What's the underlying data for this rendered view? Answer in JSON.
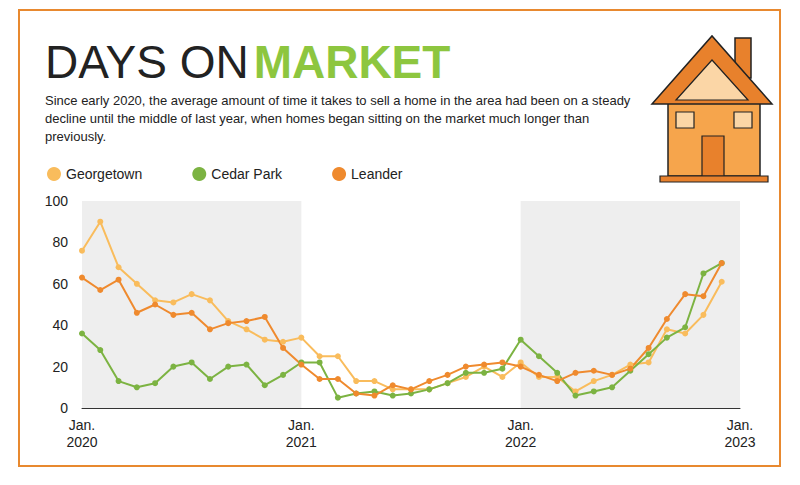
{
  "chart_data": {
    "type": "line",
    "title": "DAYS ON MARKET",
    "subtitle": "Since early 2020, the average amount of time it takes to sell a home in the area had been on a steady decline until the middle of last year, when homes began sitting on the market much longer than previously.",
    "categories": [
      "Jan.\n2020",
      null,
      null,
      null,
      null,
      null,
      null,
      null,
      null,
      null,
      null,
      null,
      "Jan.\n2021",
      null,
      null,
      null,
      null,
      null,
      null,
      null,
      null,
      null,
      null,
      null,
      "Jan.\n2022",
      null,
      null,
      null,
      null,
      null,
      null,
      null,
      null,
      null,
      null,
      null,
      "Jan.\n2023"
    ],
    "series": [
      {
        "name": "Georgetown",
        "color": "#f9bc5c",
        "values": [
          76,
          90,
          68,
          60,
          52,
          51,
          55,
          52,
          42,
          38,
          33,
          32,
          34,
          25,
          25,
          13,
          13,
          9,
          9,
          9,
          12,
          15,
          20,
          15,
          22,
          15,
          15,
          8,
          13,
          16,
          21,
          22,
          38,
          36,
          45,
          61,
          null
        ]
      },
      {
        "name": "Cedar Park",
        "color": "#7cb342",
        "values": [
          36,
          28,
          13,
          10,
          12,
          20,
          22,
          14,
          20,
          21,
          11,
          16,
          22,
          22,
          5,
          7,
          8,
          6,
          7,
          9,
          12,
          17,
          17,
          19,
          33,
          25,
          17,
          6,
          8,
          10,
          18,
          26,
          34,
          39,
          65,
          70,
          null
        ]
      },
      {
        "name": "Leander",
        "color": "#ef8a2e",
        "values": [
          63,
          57,
          62,
          46,
          50,
          45,
          46,
          38,
          41,
          42,
          44,
          29,
          21,
          14,
          14,
          7,
          6,
          11,
          9,
          13,
          16,
          20,
          21,
          22,
          20,
          16,
          13,
          17,
          18,
          16,
          19,
          29,
          43,
          55,
          54,
          70,
          null
        ]
      }
    ],
    "ylim": [
      0,
      100
    ],
    "yticks": [
      0,
      20,
      40,
      60,
      80,
      100
    ],
    "grid": false,
    "legend": "top-left",
    "marker": "circle"
  }
}
